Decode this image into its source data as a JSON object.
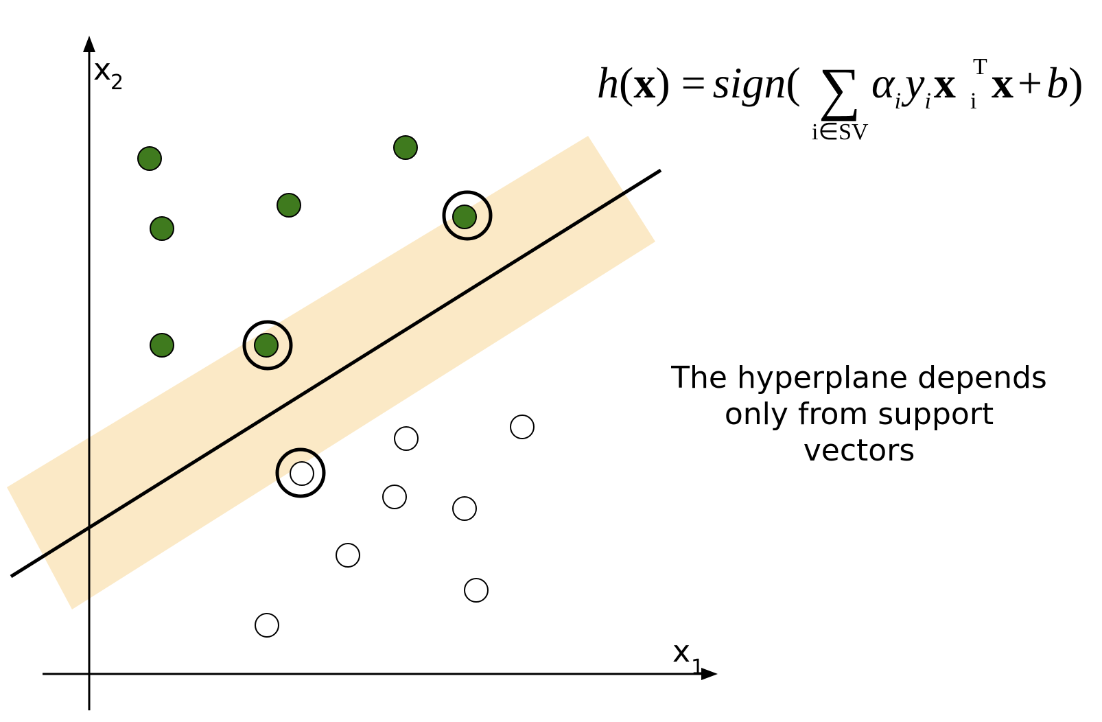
{
  "axes": {
    "x_label": "x",
    "x_subscript": "1",
    "y_label": "x",
    "y_subscript": "2"
  },
  "formula": {
    "h": "h",
    "open_paren": "(",
    "x_bold": "x",
    "close_eq": ") =",
    "sign": "sign",
    "paren2": "(",
    "sum": "∑",
    "alpha": "α",
    "i1": "i",
    "y": "y",
    "i2": "i",
    "x_bold2": "x",
    "T": "T",
    "i3": "i",
    "plus": "+",
    "x_bold3": "x",
    "plus2": "+",
    "b": "b",
    "close": ")",
    "sum_index": "i∈SV"
  },
  "caption": {
    "line1": "The hyperplane depends",
    "line2": "only from support",
    "line3": "vectors"
  },
  "colors": {
    "positive_fill": "#3f7a1e",
    "negative_fill": "#ffffff",
    "margin_band": "#fbe9c6",
    "line": "#000000"
  },
  "points": {
    "positive": [
      {
        "x1": 1.3,
        "x2": 8.9
      },
      {
        "x1": 7.0,
        "x2": 9.1
      },
      {
        "x1": 4.4,
        "x2": 8.0
      },
      {
        "x1": 1.5,
        "x2": 7.7
      },
      {
        "x1": 8.0,
        "x2": 7.9,
        "support_vector": true
      },
      {
        "x1": 1.5,
        "x2": 5.7
      },
      {
        "x1": 3.8,
        "x2": 5.7,
        "support_vector": true
      }
    ],
    "negative": [
      {
        "x1": 9.0,
        "x2": 4.3
      },
      {
        "x1": 7.0,
        "x2": 4.1
      },
      {
        "x1": 4.4,
        "x2": 3.5,
        "support_vector": true
      },
      {
        "x1": 6.7,
        "x2": 3.1
      },
      {
        "x1": 8.2,
        "x2": 2.9
      },
      {
        "x1": 5.6,
        "x2": 2.1
      },
      {
        "x1": 8.4,
        "x2": 1.5
      },
      {
        "x1": 3.8,
        "x2": 0.9
      }
    ]
  }
}
